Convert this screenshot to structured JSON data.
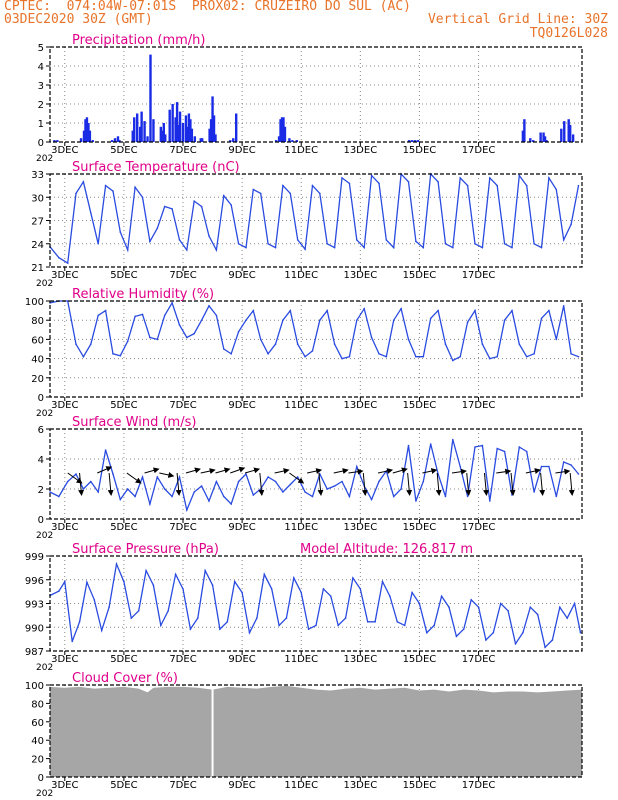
{
  "header": {
    "line1_left": "CPTEC:  074:04W-07:01S  PROX02: CRUZEIRO DO SUL (AC)",
    "line2_left": "03DEC2020 30Z (GMT)",
    "line2_right": "Vertical Grid Line: 30Z",
    "line3_right": "TQ0126L028",
    "year_fragment": "202"
  },
  "colors": {
    "title": "#e0008a",
    "header": "#e8732a",
    "line": "#2a4be0",
    "bar": "#1a2be6",
    "cloud": "#a6a6a6",
    "wind_arrow": "#000000"
  },
  "x_ticks": [
    "3DEC",
    "5DEC",
    "7DEC",
    "9DEC",
    "11DEC",
    "13DEC",
    "15DEC",
    "17DEC"
  ],
  "chart_data": [
    {
      "type": "bar",
      "title": "Precipitation (mm/h)",
      "ylim": [
        0,
        5
      ],
      "yticks": [
        "0",
        "1",
        "2",
        "3",
        "4",
        "5"
      ],
      "grid": true,
      "x_days": [
        0.15,
        0.25,
        1.05,
        1.15,
        1.2,
        1.25,
        1.3,
        1.35,
        1.45,
        2.1,
        2.2,
        2.3,
        2.35,
        2.8,
        2.85,
        2.95,
        3.05,
        3.1,
        3.2,
        3.3,
        3.4,
        3.5,
        3.75,
        3.8,
        3.85,
        3.9,
        4.05,
        4.15,
        4.25,
        4.3,
        4.35,
        4.4,
        4.5,
        4.6,
        4.65,
        4.7,
        4.75,
        4.8,
        4.9,
        5.1,
        5.15,
        5.4,
        5.45,
        5.5,
        5.55,
        5.6,
        6.1,
        6.2,
        6.3,
        7.65,
        7.75,
        7.8,
        7.85,
        7.9,
        7.95,
        8.1,
        8.2,
        8.35,
        12.15,
        12.25,
        12.35,
        12.45,
        16.0,
        16.05,
        16.25,
        16.35,
        16.6,
        16.7,
        16.75,
        16.8,
        17.3,
        17.4,
        17.55,
        17.6,
        17.7
      ],
      "values": [
        0.1,
        0.1,
        0.2,
        0.6,
        1.2,
        1.3,
        1.0,
        0.6,
        0.1,
        0.1,
        0.2,
        0.3,
        0.1,
        0.6,
        1.3,
        1.5,
        0.8,
        1.6,
        1.1,
        0.3,
        4.6,
        1.2,
        0.8,
        0.6,
        1.0,
        0.4,
        1.7,
        2.0,
        1.3,
        2.1,
        0.9,
        1.6,
        1.0,
        1.4,
        0.8,
        1.5,
        1.2,
        0.7,
        0.3,
        0.2,
        0.2,
        0.7,
        1.2,
        2.4,
        1.4,
        0.4,
        0.1,
        0.2,
        1.5,
        0.1,
        0.3,
        1.2,
        1.3,
        1.3,
        0.8,
        0.2,
        0.1,
        0.1,
        0.1,
        0.1,
        0.1,
        0.1,
        0.6,
        1.2,
        0.2,
        0.1,
        0.5,
        0.5,
        0.3,
        0.1,
        0.7,
        1.1,
        1.2,
        0.9,
        0.4
      ]
    },
    {
      "type": "line",
      "title": "Surface Temperature (nC)",
      "ylim": [
        21,
        33
      ],
      "yticks": [
        "21",
        "24",
        "27",
        "30",
        "33"
      ],
      "grid": true,
      "x_days": [
        0.0,
        0.3,
        0.6,
        0.88,
        1.13,
        1.38,
        1.63,
        1.88,
        2.13,
        2.38,
        2.63,
        2.88,
        3.13,
        3.38,
        3.63,
        3.88,
        4.13,
        4.38,
        4.63,
        4.88,
        5.13,
        5.38,
        5.63,
        5.88,
        6.13,
        6.38,
        6.63,
        6.88,
        7.13,
        7.38,
        7.63,
        7.88,
        8.13,
        8.38,
        8.63,
        8.88,
        9.13,
        9.38,
        9.63,
        9.88,
        10.13,
        10.38,
        10.63,
        10.88,
        11.13,
        11.38,
        11.63,
        11.88,
        12.13,
        12.38,
        12.63,
        12.88,
        13.13,
        13.38,
        13.63,
        13.88,
        14.13,
        14.38,
        14.63,
        14.88,
        15.13,
        15.38,
        15.63,
        15.88,
        16.13,
        16.38,
        16.63,
        16.88,
        17.13,
        17.38,
        17.63,
        17.88
      ],
      "values": [
        23.6,
        22.2,
        21.5,
        30.5,
        32.0,
        28.0,
        24.0,
        31.5,
        30.8,
        25.5,
        23.2,
        31.3,
        30.0,
        24.3,
        26.0,
        28.8,
        28.5,
        24.5,
        23.2,
        29.5,
        28.8,
        25.0,
        23.2,
        30.2,
        29.0,
        24.0,
        23.5,
        31.0,
        30.5,
        24.0,
        23.5,
        31.5,
        30.5,
        24.5,
        23.3,
        31.5,
        30.5,
        24.0,
        23.5,
        32.5,
        31.8,
        24.5,
        23.5,
        32.8,
        31.8,
        24.5,
        23.5,
        33.0,
        32.0,
        24.3,
        23.5,
        33.0,
        32.0,
        24.0,
        23.5,
        32.5,
        31.5,
        24.0,
        23.5,
        32.5,
        31.5,
        24.0,
        23.5,
        32.8,
        31.5,
        24.0,
        23.5,
        32.5,
        31.0,
        24.5,
        26.5,
        31.5
      ]
    },
    {
      "type": "line",
      "title": "Relative Humidity (%)",
      "ylim": [
        0,
        100
      ],
      "yticks": [
        "0",
        "20",
        "40",
        "60",
        "80",
        "100"
      ],
      "grid": true,
      "x_days": [
        0.0,
        0.3,
        0.6,
        0.88,
        1.13,
        1.38,
        1.63,
        1.88,
        2.13,
        2.38,
        2.63,
        2.88,
        3.13,
        3.38,
        3.63,
        3.88,
        4.13,
        4.38,
        4.63,
        4.88,
        5.13,
        5.38,
        5.63,
        5.88,
        6.13,
        6.38,
        6.63,
        6.88,
        7.13,
        7.38,
        7.63,
        7.88,
        8.13,
        8.38,
        8.63,
        8.88,
        9.13,
        9.38,
        9.63,
        9.88,
        10.13,
        10.38,
        10.63,
        10.88,
        11.13,
        11.38,
        11.63,
        11.88,
        12.13,
        12.38,
        12.63,
        12.88,
        13.13,
        13.38,
        13.63,
        13.88,
        14.13,
        14.38,
        14.63,
        14.88,
        15.13,
        15.38,
        15.63,
        15.88,
        16.13,
        16.38,
        16.63,
        16.88,
        17.13,
        17.38,
        17.63,
        17.88
      ],
      "values": [
        98,
        100,
        100,
        55,
        42,
        55,
        85,
        90,
        45,
        43,
        58,
        84,
        86,
        62,
        60,
        85,
        98,
        75,
        62,
        66,
        80,
        95,
        85,
        50,
        45,
        68,
        80,
        90,
        60,
        45,
        55,
        80,
        90,
        55,
        42,
        48,
        80,
        90,
        55,
        40,
        42,
        80,
        92,
        62,
        45,
        42,
        80,
        92,
        60,
        42,
        42,
        82,
        90,
        55,
        38,
        42,
        78,
        90,
        55,
        40,
        42,
        80,
        90,
        55,
        42,
        45,
        82,
        90,
        60,
        95,
        45,
        42
      ]
    },
    {
      "type": "line",
      "title": "Surface Wind (m/s)",
      "ylim": [
        0,
        6
      ],
      "yticks": [
        "0",
        "2",
        "4",
        "6"
      ],
      "grid": true,
      "x_days": [
        0.0,
        0.3,
        0.6,
        0.88,
        1.13,
        1.38,
        1.63,
        1.88,
        2.13,
        2.38,
        2.63,
        2.88,
        3.13,
        3.38,
        3.63,
        3.88,
        4.13,
        4.38,
        4.63,
        4.88,
        5.13,
        5.38,
        5.63,
        5.88,
        6.13,
        6.38,
        6.63,
        6.88,
        7.13,
        7.38,
        7.63,
        7.88,
        8.13,
        8.38,
        8.63,
        8.88,
        9.13,
        9.38,
        9.63,
        9.88,
        10.13,
        10.38,
        10.63,
        10.88,
        11.13,
        11.38,
        11.63,
        11.88,
        12.13,
        12.38,
        12.63,
        12.88,
        13.13,
        13.38,
        13.63,
        13.88,
        14.13,
        14.38,
        14.63,
        14.88,
        15.13,
        15.38,
        15.63,
        15.88,
        16.13,
        16.38,
        16.63,
        16.88,
        17.13,
        17.38,
        17.63,
        17.88
      ],
      "values": [
        1.8,
        1.5,
        2.5,
        3.0,
        2.0,
        2.5,
        1.8,
        4.6,
        3.0,
        1.3,
        2.0,
        1.5,
        2.8,
        1.0,
        2.8,
        2.0,
        1.5,
        2.8,
        0.6,
        1.8,
        2.2,
        1.2,
        2.5,
        1.5,
        1.0,
        2.5,
        3.0,
        1.6,
        2.0,
        2.8,
        2.5,
        1.8,
        2.3,
        2.8,
        1.8,
        1.5,
        3.0,
        2.0,
        2.2,
        2.5,
        1.5,
        3.5,
        2.2,
        1.3,
        2.5,
        3.2,
        1.5,
        2.0,
        4.9,
        1.2,
        2.5,
        5.0,
        3.0,
        1.5,
        5.3,
        3.5,
        1.5,
        4.8,
        4.9,
        1.2,
        4.7,
        4.5,
        1.6,
        4.8,
        4.5,
        1.8,
        3.5,
        3.5,
        1.5,
        3.8,
        3.6,
        3.0
      ]
    },
    {
      "type": "line",
      "title": "Surface Pressure (hPa)",
      "subtitle": "Model Altitude: 126.817  m",
      "ylim": [
        987,
        1000
      ],
      "yticks": [
        "987",
        "990",
        "993",
        "996",
        "999"
      ],
      "grid": true,
      "x_days": [
        0.0,
        0.3,
        0.5,
        0.75,
        1.0,
        1.25,
        1.5,
        1.75,
        2.0,
        2.25,
        2.5,
        2.75,
        3.0,
        3.25,
        3.5,
        3.75,
        4.0,
        4.25,
        4.5,
        4.75,
        5.0,
        5.25,
        5.5,
        5.75,
        6.0,
        6.25,
        6.5,
        6.75,
        7.0,
        7.25,
        7.5,
        7.75,
        8.0,
        8.25,
        8.5,
        8.75,
        9.0,
        9.25,
        9.5,
        9.75,
        10.0,
        10.25,
        10.5,
        10.75,
        11.0,
        11.25,
        11.5,
        11.75,
        12.0,
        12.25,
        12.5,
        12.75,
        13.0,
        13.25,
        13.5,
        13.75,
        14.0,
        14.25,
        14.5,
        14.75,
        15.0,
        15.25,
        15.5,
        15.75,
        16.0,
        16.25,
        16.5,
        16.75,
        17.0,
        17.25,
        17.5,
        17.75,
        17.95
      ],
      "values": [
        994.6,
        995.2,
        996.5,
        988.3,
        991.0,
        996.4,
        994.0,
        989.8,
        993.0,
        998.9,
        996.5,
        991.5,
        992.5,
        998.0,
        996.0,
        990.5,
        992.5,
        997.5,
        995.5,
        990.0,
        991.5,
        998.0,
        996.0,
        990.0,
        991.0,
        996.5,
        995.0,
        989.5,
        991.5,
        997.5,
        995.5,
        990.5,
        991.5,
        997.0,
        995.0,
        990.0,
        990.5,
        995.5,
        994.5,
        990.5,
        991.5,
        997.0,
        995.5,
        991.0,
        991.0,
        996.5,
        994.5,
        991.0,
        990.5,
        995.0,
        993.5,
        989.5,
        990.5,
        994.5,
        993.0,
        989.0,
        990.0,
        994.0,
        993.0,
        988.5,
        989.5,
        993.5,
        992.5,
        988.0,
        989.5,
        993.0,
        992.0,
        987.5,
        988.5,
        993.0,
        991.5,
        993.5,
        989.5
      ]
    },
    {
      "type": "area",
      "title": "Cloud Cover (%)",
      "ylim": [
        0,
        100
      ],
      "yticks": [
        "0",
        "20",
        "40",
        "60",
        "80",
        "100"
      ],
      "grid": true,
      "x_days": [
        0.0,
        0.5,
        1.0,
        1.5,
        2.0,
        2.5,
        3.0,
        3.3,
        3.5,
        4.0,
        4.5,
        5.0,
        5.5,
        6.0,
        6.5,
        7.0,
        7.5,
        8.0,
        8.5,
        9.0,
        9.5,
        10.0,
        10.5,
        11.0,
        11.5,
        12.0,
        12.5,
        13.0,
        13.5,
        14.0,
        14.5,
        15.0,
        15.5,
        16.0,
        16.5,
        17.0,
        17.5,
        18.0
      ],
      "values": [
        98,
        97,
        98,
        96,
        97,
        98,
        96,
        92,
        97,
        98,
        98,
        97,
        95,
        98,
        97,
        96,
        98,
        99,
        97,
        95,
        94,
        96,
        97,
        95,
        96,
        97,
        94,
        95,
        93,
        95,
        94,
        92,
        93,
        93,
        92,
        93,
        94,
        95
      ],
      "gap_x_day": 5.5
    }
  ]
}
